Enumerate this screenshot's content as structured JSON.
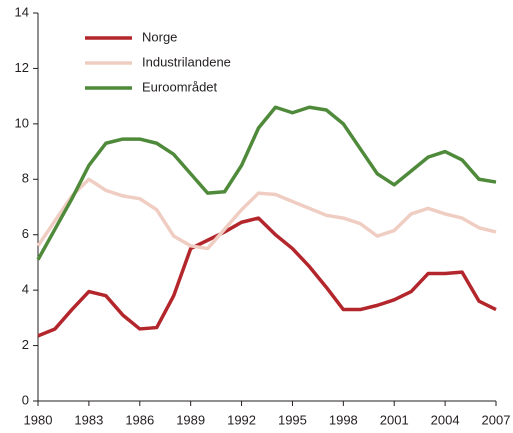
{
  "chart_data": {
    "type": "line",
    "x": [
      1980,
      1981,
      1982,
      1983,
      1984,
      1985,
      1986,
      1987,
      1988,
      1989,
      1990,
      1991,
      1992,
      1993,
      1994,
      1995,
      1996,
      1997,
      1998,
      1999,
      2000,
      2001,
      2002,
      2003,
      2004,
      2005,
      2006,
      2007
    ],
    "series": [
      {
        "name": "Norge",
        "color": "#b3262c",
        "values": [
          2.35,
          2.6,
          3.3,
          3.95,
          3.8,
          3.1,
          2.6,
          2.65,
          3.8,
          5.5,
          5.8,
          6.1,
          6.45,
          6.6,
          6.0,
          5.5,
          4.85,
          4.1,
          3.3,
          3.3,
          3.45,
          3.65,
          3.95,
          4.6,
          4.6,
          4.65,
          3.6,
          3.3
        ]
      },
      {
        "name": "Industrilandene",
        "color": "#f0cdc2",
        "values": [
          5.6,
          6.5,
          7.4,
          8.0,
          7.6,
          7.4,
          7.3,
          6.9,
          5.95,
          5.6,
          5.5,
          6.2,
          6.9,
          7.5,
          7.45,
          7.2,
          6.95,
          6.7,
          6.6,
          6.4,
          5.95,
          6.15,
          6.75,
          6.95,
          6.75,
          6.6,
          6.25,
          6.1
        ]
      },
      {
        "name": "Euroområdet",
        "color": "#4f8a3b",
        "values": [
          5.1,
          6.2,
          7.3,
          8.5,
          9.3,
          9.45,
          9.45,
          9.3,
          8.9,
          8.2,
          7.5,
          7.55,
          8.5,
          9.85,
          10.6,
          10.4,
          10.6,
          10.5,
          10.0,
          9.1,
          8.2,
          7.8,
          8.3,
          8.8,
          9.0,
          8.7,
          8.0,
          7.9
        ]
      }
    ],
    "xlim": [
      1980,
      2007
    ],
    "xticks": [
      1980,
      1983,
      1986,
      1989,
      1992,
      1995,
      1998,
      2001,
      2004,
      2007
    ],
    "ylim": [
      0,
      14
    ],
    "yticks": [
      0,
      2,
      4,
      6,
      8,
      10,
      12,
      14
    ],
    "grid": false,
    "legend": "upper-left"
  }
}
